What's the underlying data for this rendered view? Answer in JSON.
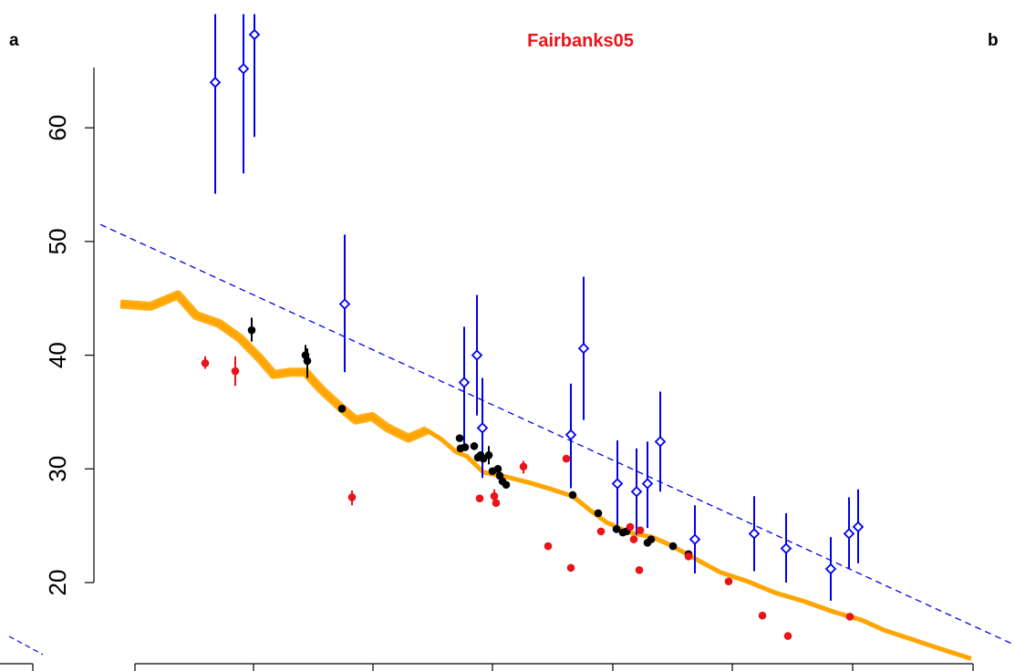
{
  "panels": {
    "left_label": "a",
    "right_label": "b"
  },
  "chart_data": {
    "type": "scatter",
    "title": "Fairbanks05",
    "xlabel": "",
    "ylabel": "",
    "ylim": [
      13.2,
      66
    ],
    "xlim": [
      0,
      1113
    ],
    "y_ticks": [
      20,
      30,
      40,
      50,
      60
    ],
    "y_tick_labels": [
      "20",
      "30",
      "40",
      "50",
      "60"
    ],
    "x_ticks": [
      148,
      278,
      409,
      540,
      672,
      803,
      935,
      1067
    ],
    "grid": false,
    "colors": {
      "blue": "#0000ee",
      "black": "#000000",
      "red": "#e8141a",
      "orange": "#ffa500",
      "dark_red": "#7a1010"
    },
    "series": [
      {
        "marker": "open-diamond-with-error-bar",
        "color": "#0000ee",
        "points": [
          {
            "x": 236,
            "y": 64.0,
            "lo": 54.2,
            "hi": 70.0
          },
          {
            "x": 267,
            "y": 65.2,
            "lo": 56.0,
            "hi": 70.0
          },
          {
            "x": 279,
            "y": 68.2,
            "lo": 59.2,
            "hi": 70.0
          },
          {
            "x": 378,
            "y": 44.5,
            "lo": 38.5,
            "hi": 50.6
          },
          {
            "x": 509,
            "y": 37.6,
            "lo": 32.2,
            "hi": 42.5
          },
          {
            "x": 523,
            "y": 40.0,
            "lo": 34.7,
            "hi": 45.3
          },
          {
            "x": 529,
            "y": 33.6,
            "lo": 29.2,
            "hi": 38.0
          },
          {
            "x": 626,
            "y": 33.0,
            "lo": 28.3,
            "hi": 37.5
          },
          {
            "x": 640,
            "y": 40.6,
            "lo": 34.3,
            "hi": 46.9
          },
          {
            "x": 677,
            "y": 28.7,
            "lo": 24.6,
            "hi": 32.5
          },
          {
            "x": 698,
            "y": 28.0,
            "lo": 24.2,
            "hi": 31.8
          },
          {
            "x": 710,
            "y": 28.7,
            "lo": 24.8,
            "hi": 32.4
          },
          {
            "x": 724,
            "y": 32.4,
            "lo": 28.0,
            "hi": 36.8
          },
          {
            "x": 762,
            "y": 23.8,
            "lo": 20.8,
            "hi": 26.8
          },
          {
            "x": 827,
            "y": 24.3,
            "lo": 21.0,
            "hi": 27.6
          },
          {
            "x": 862,
            "y": 23.0,
            "lo": 20.0,
            "hi": 26.1
          },
          {
            "x": 911,
            "y": 21.2,
            "lo": 18.4,
            "hi": 24.0
          },
          {
            "x": 931,
            "y": 24.3,
            "lo": 21.2,
            "hi": 27.5
          },
          {
            "x": 941,
            "y": 24.9,
            "lo": 21.7,
            "hi": 28.2
          }
        ]
      },
      {
        "marker": "filled-circle",
        "color": "#000000",
        "points": [
          {
            "x": 276,
            "y": 42.2,
            "lo": 41.2,
            "hi": 43.3
          },
          {
            "x": 335,
            "y": 40.0,
            "lo": 39.2,
            "hi": 40.9
          },
          {
            "x": 337,
            "y": 39.5,
            "lo": 38.0,
            "hi": 40.6
          },
          {
            "x": 375,
            "y": 35.3
          },
          {
            "x": 504,
            "y": 32.7
          },
          {
            "x": 505,
            "y": 31.8
          },
          {
            "x": 510,
            "y": 31.9
          },
          {
            "x": 520,
            "y": 32.0
          },
          {
            "x": 524,
            "y": 31.0
          },
          {
            "x": 527,
            "y": 31.2
          },
          {
            "x": 530,
            "y": 30.9
          },
          {
            "x": 536,
            "y": 31.2,
            "lo": 30.4,
            "hi": 32.0
          },
          {
            "x": 540,
            "y": 29.8
          },
          {
            "x": 546,
            "y": 30.0
          },
          {
            "x": 548,
            "y": 29.4
          },
          {
            "x": 551,
            "y": 28.9
          },
          {
            "x": 555,
            "y": 28.6
          },
          {
            "x": 628,
            "y": 27.7
          },
          {
            "x": 656,
            "y": 26.1
          },
          {
            "x": 676,
            "y": 24.7
          },
          {
            "x": 683,
            "y": 24.4
          },
          {
            "x": 687,
            "y": 24.5
          },
          {
            "x": 710,
            "y": 23.5
          },
          {
            "x": 714,
            "y": 23.8
          },
          {
            "x": 738,
            "y": 23.2
          },
          {
            "x": 755,
            "y": 22.5
          }
        ]
      },
      {
        "marker": "filled-circle",
        "color": "#e8141a",
        "points": [
          {
            "x": 225,
            "y": 39.3,
            "lo": 38.8,
            "hi": 39.9
          },
          {
            "x": 258,
            "y": 38.6,
            "lo": 37.3,
            "hi": 39.9
          },
          {
            "x": 386,
            "y": 27.5,
            "lo": 26.8,
            "hi": 28.1
          },
          {
            "x": 526,
            "y": 27.4
          },
          {
            "x": 542,
            "y": 27.6,
            "lo": 27.0,
            "hi": 28.2
          },
          {
            "x": 544,
            "y": 27.0
          },
          {
            "x": 574,
            "y": 30.2,
            "lo": 29.6,
            "hi": 30.7
          },
          {
            "x": 601,
            "y": 23.2
          },
          {
            "x": 621,
            "y": 30.9
          },
          {
            "x": 626,
            "y": 21.3
          },
          {
            "x": 659,
            "y": 24.5
          },
          {
            "x": 691,
            "y": 24.9
          },
          {
            "x": 695,
            "y": 23.8
          },
          {
            "x": 701,
            "y": 21.1
          },
          {
            "x": 702,
            "y": 24.6
          },
          {
            "x": 755,
            "y": 22.3
          },
          {
            "x": 799,
            "y": 20.1
          },
          {
            "x": 836,
            "y": 17.1
          },
          {
            "x": 864,
            "y": 15.3
          },
          {
            "x": 932,
            "y": 17.0
          }
        ]
      }
    ],
    "reference_line": {
      "style": "dashed",
      "color": "#0000ee",
      "from": {
        "x": 110,
        "y": 51.5
      },
      "to": {
        "x": 1113,
        "y": 14.5
      }
    },
    "band": {
      "color": "#ffa500",
      "points": [
        {
          "x": 132,
          "y": 44.5
        },
        {
          "x": 165,
          "y": 44.3
        },
        {
          "x": 195,
          "y": 45.3
        },
        {
          "x": 215,
          "y": 43.5
        },
        {
          "x": 240,
          "y": 42.8
        },
        {
          "x": 263,
          "y": 41.5
        },
        {
          "x": 285,
          "y": 39.7
        },
        {
          "x": 300,
          "y": 38.3
        },
        {
          "x": 318,
          "y": 38.5
        },
        {
          "x": 335,
          "y": 38.5
        },
        {
          "x": 352,
          "y": 37.0
        },
        {
          "x": 375,
          "y": 35.3
        },
        {
          "x": 390,
          "y": 34.3
        },
        {
          "x": 408,
          "y": 34.6
        },
        {
          "x": 425,
          "y": 33.6
        },
        {
          "x": 448,
          "y": 32.7
        },
        {
          "x": 468,
          "y": 33.4
        },
        {
          "x": 484,
          "y": 32.6
        },
        {
          "x": 500,
          "y": 31.5
        },
        {
          "x": 512,
          "y": 31.1
        },
        {
          "x": 530,
          "y": 29.7
        },
        {
          "x": 555,
          "y": 29.3
        },
        {
          "x": 580,
          "y": 28.8
        },
        {
          "x": 605,
          "y": 28.2
        },
        {
          "x": 628,
          "y": 27.6
        },
        {
          "x": 648,
          "y": 26.3
        },
        {
          "x": 665,
          "y": 25.3
        },
        {
          "x": 690,
          "y": 24.4
        },
        {
          "x": 715,
          "y": 24.0
        },
        {
          "x": 735,
          "y": 23.3
        },
        {
          "x": 760,
          "y": 22.2
        },
        {
          "x": 790,
          "y": 20.9
        },
        {
          "x": 820,
          "y": 20.1
        },
        {
          "x": 850,
          "y": 19.1
        },
        {
          "x": 880,
          "y": 18.4
        },
        {
          "x": 915,
          "y": 17.4
        },
        {
          "x": 945,
          "y": 16.7
        },
        {
          "x": 970,
          "y": 15.8
        },
        {
          "x": 1000,
          "y": 15.0
        },
        {
          "x": 1030,
          "y": 14.2
        },
        {
          "x": 1065,
          "y": 13.3
        }
      ]
    }
  }
}
